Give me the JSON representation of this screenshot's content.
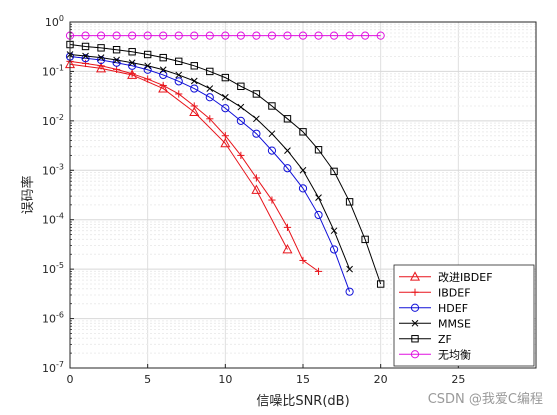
{
  "chart_data": {
    "type": "line",
    "xlabel": "信噪比SNR(dB)",
    "ylabel": "误码率",
    "xlim": [
      0,
      30
    ],
    "ylim": [
      1e-07,
      1
    ],
    "yscale": "log",
    "grid": true,
    "legend_position": "bottom-right",
    "x_ticks": [
      0,
      5,
      10,
      15,
      20,
      25
    ],
    "y_tick_exponents": [
      0,
      -1,
      -2,
      -3,
      -4,
      -5,
      -6,
      -7
    ],
    "series": [
      {
        "name": "改进IBDEF",
        "color": "#e8141b",
        "marker": "triangle",
        "x": [
          0,
          2,
          4,
          6,
          8,
          10,
          12,
          14
        ],
        "y": [
          0.14,
          0.115,
          0.085,
          0.045,
          0.015,
          0.0035,
          0.0004,
          2.5e-05
        ]
      },
      {
        "name": "IBDEF",
        "color": "#e8141b",
        "marker": "plus",
        "x": [
          0,
          1,
          2,
          3,
          4,
          5,
          6,
          7,
          8,
          9,
          10,
          11,
          12,
          13,
          14,
          15,
          16
        ],
        "y": [
          0.16,
          0.145,
          0.13,
          0.11,
          0.09,
          0.07,
          0.052,
          0.035,
          0.02,
          0.011,
          0.005,
          0.002,
          0.0007,
          0.00025,
          7e-05,
          1.5e-05,
          9e-06
        ]
      },
      {
        "name": "HDEF",
        "color": "#1010d8",
        "marker": "circle",
        "x": [
          0,
          1,
          2,
          3,
          4,
          5,
          6,
          7,
          8,
          9,
          10,
          11,
          12,
          13,
          14,
          15,
          16,
          17,
          18
        ],
        "y": [
          0.2,
          0.185,
          0.17,
          0.15,
          0.13,
          0.108,
          0.085,
          0.063,
          0.045,
          0.03,
          0.018,
          0.01,
          0.0055,
          0.0025,
          0.0011,
          0.00043,
          0.000125,
          2.5e-05,
          3.5e-06
        ]
      },
      {
        "name": "MMSE",
        "color": "#000000",
        "marker": "x",
        "x": [
          0,
          1,
          2,
          3,
          4,
          5,
          6,
          7,
          8,
          9,
          10,
          11,
          12,
          13,
          14,
          15,
          16,
          17,
          18
        ],
        "y": [
          0.22,
          0.205,
          0.19,
          0.17,
          0.15,
          0.13,
          0.108,
          0.085,
          0.064,
          0.045,
          0.03,
          0.019,
          0.011,
          0.0055,
          0.0025,
          0.001,
          0.00028,
          6e-05,
          1e-05
        ]
      },
      {
        "name": "ZF",
        "color": "#000000",
        "marker": "square",
        "x": [
          0,
          1,
          2,
          3,
          4,
          5,
          6,
          7,
          8,
          9,
          10,
          11,
          12,
          13,
          14,
          15,
          16,
          17,
          18,
          19,
          20
        ],
        "y": [
          0.35,
          0.32,
          0.3,
          0.275,
          0.25,
          0.22,
          0.19,
          0.16,
          0.13,
          0.1,
          0.075,
          0.05,
          0.035,
          0.02,
          0.011,
          0.006,
          0.0026,
          0.00095,
          0.00023,
          4e-05,
          5e-06
        ]
      },
      {
        "name": "无均衡",
        "color": "#e010e0",
        "marker": "circle",
        "x": [
          0,
          1,
          2,
          3,
          4,
          5,
          6,
          7,
          8,
          9,
          10,
          11,
          12,
          13,
          14,
          15,
          16,
          17,
          18,
          19,
          20
        ],
        "y": [
          0.53,
          0.53,
          0.53,
          0.53,
          0.53,
          0.53,
          0.53,
          0.53,
          0.53,
          0.53,
          0.53,
          0.53,
          0.53,
          0.53,
          0.53,
          0.53,
          0.53,
          0.53,
          0.53,
          0.53,
          0.53
        ]
      }
    ]
  },
  "watermark": "CSDN @我爱C编程"
}
